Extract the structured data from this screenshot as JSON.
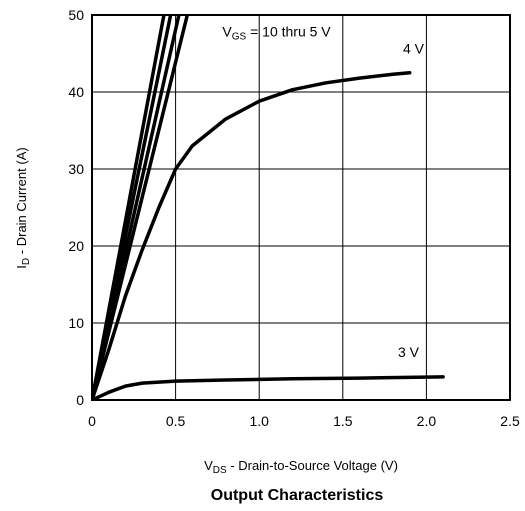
{
  "chart_data": {
    "type": "line",
    "title": "Output Characteristics",
    "xlabel": {
      "prefix": "V",
      "sub": "DS",
      "rest": " - Drain-to-Source Voltage (V)"
    },
    "ylabel": {
      "prefix": "I",
      "sub": "D",
      "rest": " - Drain Current (A)"
    },
    "xlim": [
      0,
      2.5
    ],
    "ylim": [
      0,
      50
    ],
    "grid": true,
    "x_ticks": [
      0,
      0.5,
      1.0,
      1.5,
      2.0,
      2.5
    ],
    "x_tick_labels": [
      "0",
      "0.5",
      "1.0",
      "1.5",
      "2.0",
      "2.5"
    ],
    "y_ticks": [
      0,
      10,
      20,
      30,
      40,
      50
    ],
    "y_tick_labels": [
      "0",
      "10",
      "20",
      "30",
      "40",
      "50"
    ],
    "annotations": {
      "vgs": {
        "prefix": "V",
        "sub": "GS",
        "rest": " = 10 thru 5 V",
        "x": 0.78,
        "y": 47.2
      },
      "v4": {
        "text": "4 V",
        "x": 1.86,
        "y": 45.0
      },
      "v3": {
        "text": "3 V",
        "x": 1.83,
        "y": 5.6
      }
    },
    "series": [
      {
        "values": [
          [
            0,
            0
          ],
          [
            0.43,
            50
          ]
        ]
      },
      {
        "values": [
          [
            0,
            0
          ],
          [
            0.47,
            50
          ]
        ]
      },
      {
        "values": [
          [
            0,
            0
          ],
          [
            0.52,
            50
          ]
        ]
      },
      {
        "values": [
          [
            0,
            0
          ],
          [
            0.57,
            50
          ]
        ]
      },
      {
        "values": [
          [
            0,
            0
          ],
          [
            0.1,
            6.5
          ],
          [
            0.2,
            13.5
          ],
          [
            0.3,
            19.5
          ],
          [
            0.4,
            25.0
          ],
          [
            0.5,
            30.0
          ],
          [
            0.6,
            33.0
          ],
          [
            0.8,
            36.5
          ],
          [
            1.0,
            38.8
          ],
          [
            1.2,
            40.3
          ],
          [
            1.4,
            41.2
          ],
          [
            1.6,
            41.8
          ],
          [
            1.8,
            42.3
          ],
          [
            1.9,
            42.5
          ]
        ]
      },
      {
        "values": [
          [
            0,
            0
          ],
          [
            0.1,
            1.0
          ],
          [
            0.2,
            1.8
          ],
          [
            0.3,
            2.2
          ],
          [
            0.5,
            2.45
          ],
          [
            0.8,
            2.6
          ],
          [
            1.2,
            2.75
          ],
          [
            1.6,
            2.85
          ],
          [
            2.1,
            3.0
          ]
        ]
      }
    ]
  }
}
